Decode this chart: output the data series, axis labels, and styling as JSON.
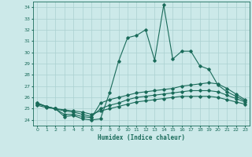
{
  "xlabel": "Humidex (Indice chaleur)",
  "ylabel": "",
  "bg_color": "#cce9e9",
  "grid_color": "#aad0d0",
  "line_color": "#1a6b5a",
  "xlim": [
    -0.5,
    23.5
  ],
  "ylim": [
    23.5,
    34.5
  ],
  "yticks": [
    24,
    25,
    26,
    27,
    28,
    29,
    30,
    31,
    32,
    33,
    34
  ],
  "xticks": [
    0,
    1,
    2,
    3,
    4,
    5,
    6,
    7,
    8,
    9,
    10,
    11,
    12,
    13,
    14,
    15,
    16,
    17,
    18,
    19,
    20,
    21,
    22,
    23
  ],
  "series": [
    {
      "x": [
        0,
        1,
        2,
        3,
        4,
        5,
        6,
        7,
        8,
        9,
        10,
        11,
        12,
        13,
        14,
        15,
        16,
        17,
        18,
        19,
        20,
        21,
        22,
        23
      ],
      "y": [
        25.5,
        25.2,
        25.0,
        24.3,
        24.4,
        24.1,
        24.0,
        24.1,
        26.4,
        29.2,
        31.3,
        31.5,
        32.0,
        29.3,
        34.2,
        29.4,
        30.1,
        30.1,
        28.8,
        28.5,
        27.1,
        26.5,
        26.1,
        25.7
      ]
    },
    {
      "x": [
        0,
        1,
        2,
        3,
        4,
        5,
        6,
        7,
        8,
        9,
        10,
        11,
        12,
        13,
        14,
        15,
        16,
        17,
        18,
        19,
        20,
        21,
        22,
        23
      ],
      "y": [
        25.5,
        25.2,
        25.0,
        24.5,
        24.5,
        24.3,
        24.2,
        25.5,
        25.8,
        26.0,
        26.2,
        26.4,
        26.5,
        26.6,
        26.7,
        26.8,
        27.0,
        27.1,
        27.2,
        27.3,
        27.2,
        26.8,
        26.3,
        25.8
      ]
    },
    {
      "x": [
        0,
        1,
        2,
        3,
        4,
        5,
        6,
        7,
        8,
        9,
        10,
        11,
        12,
        13,
        14,
        15,
        16,
        17,
        18,
        19,
        20,
        21,
        22,
        23
      ],
      "y": [
        25.4,
        25.2,
        25.0,
        24.8,
        24.7,
        24.5,
        24.3,
        25.0,
        25.3,
        25.5,
        25.8,
        26.0,
        26.1,
        26.2,
        26.3,
        26.4,
        26.5,
        26.6,
        26.6,
        26.6,
        26.5,
        26.2,
        25.9,
        25.6
      ]
    },
    {
      "x": [
        0,
        1,
        2,
        3,
        4,
        5,
        6,
        7,
        8,
        9,
        10,
        11,
        12,
        13,
        14,
        15,
        16,
        17,
        18,
        19,
        20,
        21,
        22,
        23
      ],
      "y": [
        25.3,
        25.1,
        25.0,
        24.9,
        24.8,
        24.7,
        24.5,
        24.8,
        25.0,
        25.2,
        25.4,
        25.6,
        25.7,
        25.8,
        25.9,
        26.0,
        26.1,
        26.1,
        26.1,
        26.1,
        26.0,
        25.8,
        25.6,
        25.4
      ]
    }
  ]
}
